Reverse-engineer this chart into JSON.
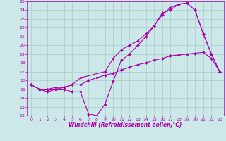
{
  "title": "",
  "xlabel": "Windchill (Refroidissement éolien,°C)",
  "ylabel": "",
  "xlim": [
    -0.5,
    23.5
  ],
  "ylim": [
    12,
    25
  ],
  "yticks": [
    12,
    13,
    14,
    15,
    16,
    17,
    18,
    19,
    20,
    21,
    22,
    23,
    24,
    25
  ],
  "xticks": [
    0,
    1,
    2,
    3,
    4,
    5,
    6,
    7,
    8,
    9,
    10,
    11,
    12,
    13,
    14,
    15,
    16,
    17,
    18,
    19,
    20,
    21,
    22,
    23
  ],
  "bg_color": "#cce8e8",
  "line_color": "#aa00aa",
  "grid_color": "#aacccc",
  "series": [
    {
      "x": [
        0,
        1,
        2,
        3,
        4,
        5,
        6,
        7,
        8,
        9,
        10,
        11,
        12,
        13,
        14,
        15,
        16,
        17,
        18,
        19,
        20,
        21,
        22,
        23
      ],
      "y": [
        15.5,
        15.0,
        14.7,
        15.0,
        15.0,
        14.7,
        14.7,
        12.2,
        12.0,
        13.3,
        15.9,
        18.3,
        19.0,
        20.0,
        21.0,
        22.2,
        23.7,
        24.0,
        24.7,
        24.8,
        24.0,
        21.3,
        19.0,
        17.0
      ]
    },
    {
      "x": [
        0,
        1,
        2,
        3,
        4,
        5,
        6,
        7,
        8,
        9,
        10,
        11,
        12,
        13,
        14,
        15,
        16,
        17,
        18,
        19,
        20,
        21,
        22,
        23
      ],
      "y": [
        15.5,
        15.0,
        15.0,
        15.0,
        15.2,
        15.5,
        15.5,
        16.0,
        16.3,
        16.6,
        16.8,
        17.2,
        17.5,
        17.8,
        18.0,
        18.3,
        18.5,
        18.8,
        18.9,
        19.0,
        19.1,
        19.2,
        18.5,
        17.0
      ]
    },
    {
      "x": [
        0,
        1,
        2,
        3,
        4,
        5,
        6,
        9,
        10,
        11,
        12,
        13,
        14,
        15,
        16,
        17,
        18,
        19,
        20,
        21,
        22,
        23
      ],
      "y": [
        15.5,
        15.0,
        15.0,
        15.2,
        15.2,
        15.5,
        16.3,
        17.0,
        18.5,
        19.5,
        20.0,
        20.5,
        21.3,
        22.2,
        23.5,
        24.3,
        24.7,
        24.8,
        24.0,
        21.3,
        19.0,
        17.0
      ]
    }
  ],
  "figsize": [
    3.2,
    2.0
  ],
  "dpi": 100
}
